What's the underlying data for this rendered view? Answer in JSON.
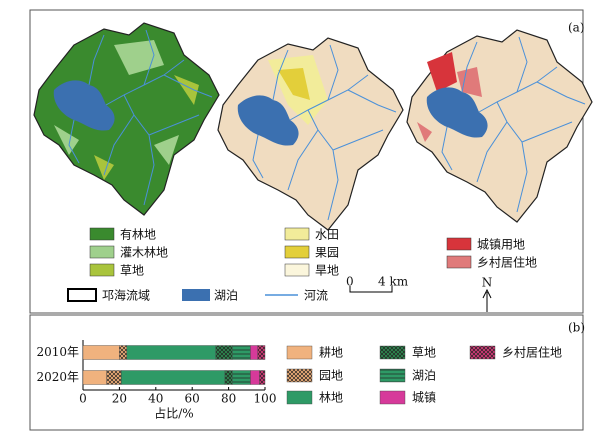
{
  "panel_a": {
    "label": "(a)",
    "legend_forest": [
      {
        "label": "有林地",
        "color": "#3a8a2e"
      },
      {
        "label": "灌木林地",
        "color": "#9fd08c"
      },
      {
        "label": "草地",
        "color": "#a9c43c"
      }
    ],
    "legend_farm": [
      {
        "label": "水田",
        "color": "#f2ec9a"
      },
      {
        "label": "果园",
        "color": "#e3cf3a"
      },
      {
        "label": "旱地",
        "color": "#fbf6dc"
      }
    ],
    "legend_settlement": [
      {
        "label": "城镇用地",
        "color": "#d7343b"
      },
      {
        "label": "乡村居住地",
        "color": "#e07a7a"
      }
    ],
    "basin": "邛海流域",
    "lake": "湖泊",
    "river": "河流",
    "scale_start": "0",
    "scale_end": "4 km",
    "north": "N"
  },
  "chart_data": {
    "type": "stacked-bar-horizontal",
    "label": "(b)",
    "categories": [
      "2010年",
      "2020年"
    ],
    "series": [
      {
        "name": "耕地",
        "color": "#f0b27e",
        "values": [
          20,
          13
        ]
      },
      {
        "name": "园地",
        "color": "#f5b27a",
        "pattern": "cross",
        "values": [
          4,
          8
        ]
      },
      {
        "name": "林地",
        "color": "#2e9a66",
        "values": [
          49,
          57
        ]
      },
      {
        "name": "草地",
        "color": "#2e8a50",
        "pattern": "cross",
        "values": [
          9,
          4
        ]
      },
      {
        "name": "湖泊",
        "color": "#2e9a66",
        "pattern": "hstripe",
        "values": [
          10,
          10
        ]
      },
      {
        "name": "城镇",
        "color": "#d63a9a",
        "values": [
          4,
          5
        ]
      },
      {
        "name": "乡村居住地",
        "color": "#d63a7a",
        "pattern": "cross",
        "values": [
          4,
          3
        ]
      }
    ],
    "xlabel": "占比/%",
    "xlim": [
      0,
      100
    ],
    "xticks": [
      0,
      20,
      40,
      60,
      80,
      100
    ]
  }
}
